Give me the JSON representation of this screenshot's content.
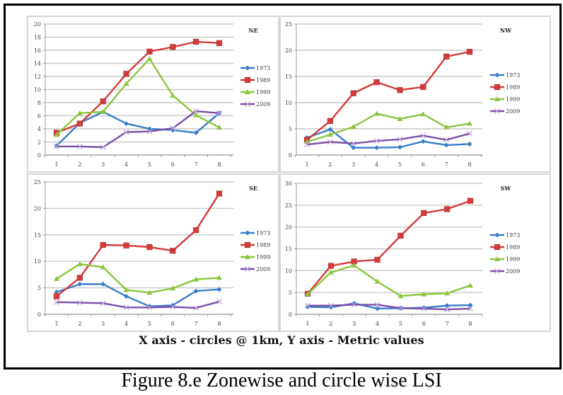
{
  "figure": {
    "subtitle": "X axis - circles @ 1km, Y axis - Metric values",
    "caption": "Figure 8.e  Zonewise and circle wise LSI"
  },
  "colors": {
    "1973": "#3a7dc9",
    "1989": "#d23b3b",
    "1999": "#8cc63f",
    "2009": "#7b4fa8"
  },
  "chart_data": [
    {
      "type": "line",
      "title": "NE",
      "categories": [
        "1",
        "2",
        "3",
        "4",
        "5",
        "6",
        "7",
        "8"
      ],
      "xlabel": "",
      "ylabel": "",
      "ylim": [
        0,
        20
      ],
      "yticks": [
        "0",
        "2",
        "4",
        "6",
        "8",
        "10",
        "12",
        "14",
        "16",
        "18",
        "20"
      ],
      "grid": true,
      "legend": "right",
      "series": [
        {
          "name": "1973",
          "marker": "diamond",
          "values": [
            1.4,
            4.9,
            6.6,
            4.8,
            4.0,
            3.8,
            3.4,
            6.4
          ]
        },
        {
          "name": "1989",
          "marker": "square",
          "values": [
            3.4,
            4.8,
            8.2,
            12.4,
            15.8,
            16.5,
            17.3,
            17.1
          ]
        },
        {
          "name": "1999",
          "marker": "triangle",
          "values": [
            3.1,
            6.4,
            6.6,
            10.9,
            14.7,
            9.1,
            6.1,
            4.2
          ]
        },
        {
          "name": "2009",
          "marker": "x",
          "values": [
            1.3,
            1.3,
            1.2,
            3.5,
            3.6,
            4.1,
            6.7,
            6.4
          ]
        }
      ]
    },
    {
      "type": "line",
      "title": "NW",
      "categories": [
        "1",
        "2",
        "3",
        "4",
        "5",
        "6",
        "7",
        "8"
      ],
      "xlabel": "",
      "ylabel": "",
      "ylim": [
        0,
        25
      ],
      "yticks": [
        "0",
        "5",
        "10",
        "15",
        "20",
        "25"
      ],
      "grid": true,
      "legend": "right",
      "series": [
        {
          "name": "1973",
          "marker": "diamond",
          "values": [
            3.3,
            4.9,
            1.4,
            1.4,
            1.5,
            2.6,
            1.9,
            2.1
          ]
        },
        {
          "name": "1989",
          "marker": "square",
          "values": [
            2.9,
            6.5,
            11.8,
            13.9,
            12.4,
            13.0,
            18.8,
            19.7
          ]
        },
        {
          "name": "1999",
          "marker": "triangle",
          "values": [
            2.5,
            3.9,
            5.4,
            7.9,
            6.9,
            7.8,
            5.3,
            6.0
          ]
        },
        {
          "name": "2009",
          "marker": "x",
          "values": [
            2.0,
            2.5,
            2.2,
            2.7,
            3.0,
            3.7,
            2.9,
            4.1
          ]
        }
      ]
    },
    {
      "type": "line",
      "title": "SE",
      "categories": [
        "1",
        "2",
        "3",
        "4",
        "5",
        "6",
        "7",
        "8"
      ],
      "xlabel": "",
      "ylabel": "",
      "ylim": [
        0,
        25
      ],
      "yticks": [
        "0",
        "5",
        "10",
        "15",
        "20",
        "25"
      ],
      "grid": true,
      "legend": "right",
      "series": [
        {
          "name": "1973",
          "marker": "diamond",
          "values": [
            4.2,
            5.7,
            5.7,
            3.4,
            1.5,
            1.7,
            4.4,
            4.7
          ]
        },
        {
          "name": "1989",
          "marker": "square",
          "values": [
            3.4,
            6.9,
            13.1,
            13.0,
            12.7,
            12.0,
            15.9,
            22.8
          ]
        },
        {
          "name": "1999",
          "marker": "triangle",
          "values": [
            6.7,
            9.5,
            8.9,
            4.6,
            4.1,
            4.9,
            6.6,
            6.9
          ]
        },
        {
          "name": "2009",
          "marker": "x",
          "values": [
            2.3,
            2.2,
            2.1,
            1.3,
            1.3,
            1.4,
            1.2,
            2.4
          ]
        }
      ]
    },
    {
      "type": "line",
      "title": "SW",
      "categories": [
        "1",
        "2",
        "3",
        "4",
        "5",
        "6",
        "7",
        "8"
      ],
      "xlabel": "",
      "ylabel": "",
      "ylim": [
        0,
        30
      ],
      "yticks": [
        "0",
        "5",
        "10",
        "15",
        "20",
        "25",
        "30"
      ],
      "grid": true,
      "legend": "right",
      "series": [
        {
          "name": "1973",
          "marker": "diamond",
          "values": [
            1.7,
            1.6,
            2.5,
            1.3,
            1.4,
            1.5,
            2.0,
            2.1
          ]
        },
        {
          "name": "1989",
          "marker": "square",
          "values": [
            4.7,
            11.1,
            12.1,
            12.5,
            18.0,
            23.2,
            24.1,
            26.0
          ]
        },
        {
          "name": "1999",
          "marker": "triangle",
          "values": [
            4.6,
            9.6,
            11.2,
            7.5,
            4.2,
            4.6,
            4.8,
            6.6
          ]
        },
        {
          "name": "2009",
          "marker": "x",
          "values": [
            2.0,
            2.0,
            2.2,
            2.2,
            1.4,
            1.3,
            1.1,
            1.3
          ]
        }
      ]
    }
  ]
}
